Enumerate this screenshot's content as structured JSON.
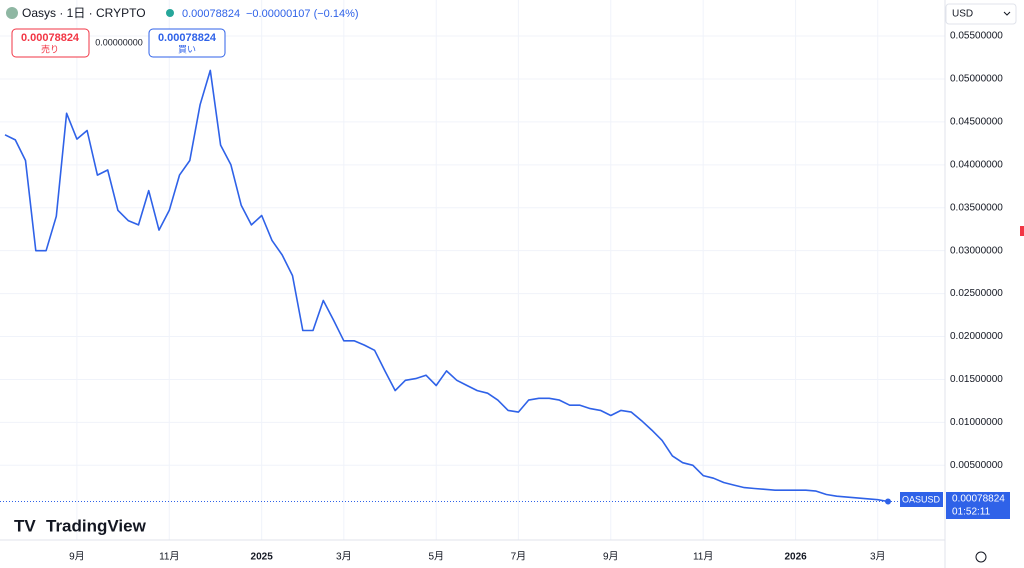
{
  "header": {
    "symbol": "Oasys · 1日 · CRYPTO",
    "price": "0.00078824",
    "change": "−0.00000107 (−0.14%)"
  },
  "toolbar": {
    "sell_price": "0.00078824",
    "sell_label": "売り",
    "spread": "0.00000000",
    "buy_price": "0.00078824",
    "buy_label": "買い"
  },
  "currency": "USD",
  "price_tag": {
    "symbol": "OASUSD",
    "price": "0.00078824",
    "countdown": "01:52:11"
  },
  "logo": "TradingView",
  "chart_data": {
    "type": "line",
    "categories": [
      null,
      null,
      null,
      null,
      null,
      null,
      null,
      "9月",
      null,
      null,
      null,
      null,
      null,
      null,
      null,
      null,
      "11月",
      null,
      null,
      null,
      null,
      null,
      null,
      null,
      null,
      "2025",
      null,
      null,
      null,
      null,
      null,
      null,
      null,
      "3月",
      null,
      null,
      null,
      null,
      null,
      null,
      null,
      null,
      "5月",
      null,
      null,
      null,
      null,
      null,
      null,
      null,
      "7月",
      null,
      null,
      null,
      null,
      null,
      null,
      null,
      null,
      "9月",
      null,
      null,
      null,
      null,
      null,
      null,
      null,
      null,
      "11月",
      null,
      null,
      null,
      null,
      null,
      null,
      null,
      null,
      "2026",
      null,
      null,
      null,
      null,
      null,
      null,
      null,
      "3月",
      null
    ],
    "series": [
      {
        "name": "OASUSD",
        "color": "#2f62e8",
        "values": [
          0.0435,
          0.0429,
          0.0405,
          0.03,
          0.03,
          0.034,
          0.046,
          0.043,
          0.044,
          0.0388,
          0.0394,
          0.0347,
          0.0335,
          0.033,
          0.037,
          0.0324,
          0.0347,
          0.0388,
          0.0405,
          0.047,
          0.051,
          0.0423,
          0.04,
          0.0353,
          0.033,
          0.0341,
          0.0312,
          0.0295,
          0.0271,
          0.0207,
          0.0207,
          0.0242,
          0.0219,
          0.0195,
          0.0195,
          0.019,
          0.0184,
          0.016,
          0.0137,
          0.0149,
          0.0151,
          0.0155,
          0.0143,
          0.016,
          0.0149,
          0.0143,
          0.0137,
          0.0134,
          0.0126,
          0.0114,
          0.0112,
          0.0126,
          0.0128,
          0.0128,
          0.0126,
          0.012,
          0.012,
          0.0116,
          0.0114,
          0.0108,
          0.0114,
          0.0112,
          0.0102,
          0.0091,
          0.0079,
          0.0061,
          0.0053,
          0.005,
          0.0038,
          0.0035,
          0.003,
          0.0027,
          0.0024,
          0.0023,
          0.0022,
          0.0021,
          0.0021,
          0.0021,
          0.0021,
          0.002,
          0.0016,
          0.0014,
          0.0013,
          0.0012,
          0.0011,
          0.001,
          0.00078824
        ]
      }
    ],
    "ylim": [
      -0.0037,
      0.0592
    ],
    "yticks": [
      {
        "value": 0.005,
        "label": "0.00500000"
      },
      {
        "value": 0.01,
        "label": "0.01000000"
      },
      {
        "value": 0.015,
        "label": "0.01500000"
      },
      {
        "value": 0.02,
        "label": "0.02000000"
      },
      {
        "value": 0.025,
        "label": "0.02500000"
      },
      {
        "value": 0.03,
        "label": "0.03000000"
      },
      {
        "value": 0.035,
        "label": "0.03500000"
      },
      {
        "value": 0.04,
        "label": "0.04000000"
      },
      {
        "value": 0.045,
        "label": "0.04500000"
      },
      {
        "value": 0.05,
        "label": "0.05000000"
      },
      {
        "value": 0.055,
        "label": "0.05500000"
      }
    ],
    "grid": true
  }
}
